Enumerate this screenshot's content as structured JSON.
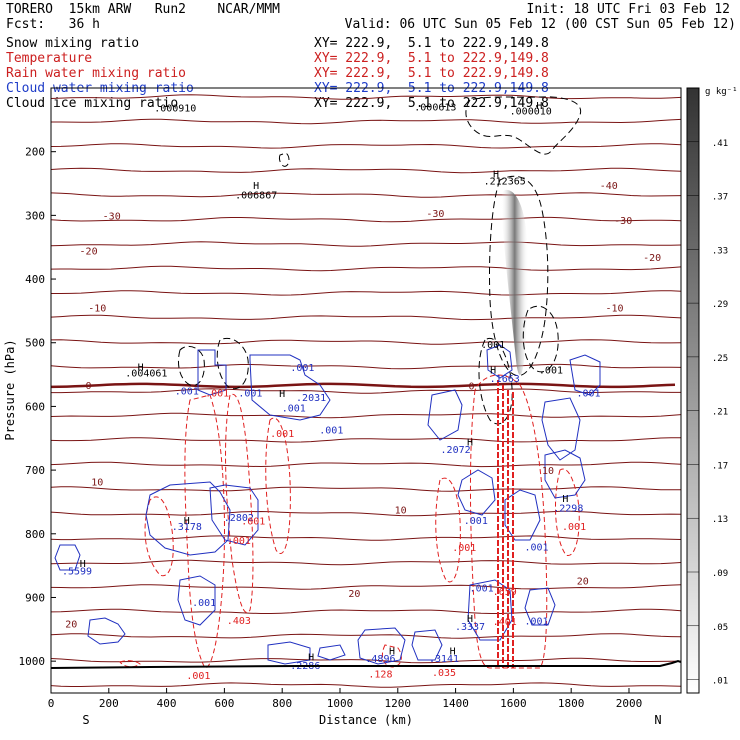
{
  "header": {
    "left_line1": "TORERO  15km ARW   Run2    NCAR/MMM",
    "left_line2": "Fcst:   36 h",
    "init": "Init: 18 UTC Fri 03 Feb 12",
    "valid": "Valid: 06 UTC Sun 05 Feb 12 (00 CST Sun 05 Feb 12)"
  },
  "fields": [
    {
      "name": "Snow mixing ratio",
      "xy": "XY= 222.9,  5.1 to 222.9,149.8",
      "color": "#000000"
    },
    {
      "name": "Temperature",
      "xy": "XY= 222.9,  5.1 to 222.9,149.8",
      "color": "#cc1f1f"
    },
    {
      "name": "Rain water mixing ratio",
      "xy": "XY= 222.9,  5.1 to 222.9,149.8",
      "color": "#cc1f1f"
    },
    {
      "name": "Cloud water mixing ratio",
      "xy": "XY= 222.9,  5.1 to 222.9,149.8",
      "color": "#1e3cc8"
    },
    {
      "name": "Cloud ice mixing ratio",
      "xy": "XY= 222.9,  5.1 to 222.9,149.8",
      "color": "#000000"
    }
  ],
  "colors": {
    "temp": "#7a1414",
    "rain": "#e02020",
    "cloud": "#2030c0",
    "ice": "#000000",
    "frame": "#000000"
  },
  "chart_data": {
    "type": "cross-section contour",
    "xlabel": "Distance (km)",
    "ylabel": "Pressure (hPa)",
    "x_ticks": [
      0,
      200,
      400,
      600,
      800,
      1000,
      1200,
      1400,
      1600,
      1800,
      2000
    ],
    "y_ticks": [
      200,
      300,
      400,
      500,
      600,
      700,
      800,
      900,
      1000
    ],
    "xlim": [
      0,
      2180
    ],
    "ylim": [
      1050,
      100
    ],
    "x_endpoints": {
      "left": "S",
      "right": "N"
    },
    "colorbar": {
      "unit": "g kg⁻¹",
      "ticks": [
        ".41",
        ".37",
        ".33",
        ".29",
        ".25",
        ".21",
        ".17",
        ".13",
        ".09",
        ".05",
        ".01"
      ],
      "values": [
        0.41,
        0.37,
        0.33,
        0.29,
        0.25,
        0.21,
        0.17,
        0.13,
        0.09,
        0.05,
        0.01
      ],
      "range": [
        0,
        0.45
      ]
    },
    "temperature_labels": [
      {
        "text": "-40",
        "x": 1930,
        "p": 252
      },
      {
        "text": "-30",
        "x": 210,
        "p": 300
      },
      {
        "text": "-30",
        "x": 1330,
        "p": 296
      },
      {
        "text": "-30",
        "x": 1980,
        "p": 307
      },
      {
        "text": "-20",
        "x": 130,
        "p": 355
      },
      {
        "text": "-20",
        "x": 2080,
        "p": 365
      },
      {
        "text": "-10",
        "x": 160,
        "p": 445
      },
      {
        "text": "-10",
        "x": 1950,
        "p": 445
      },
      {
        "text": "0",
        "x": 130,
        "p": 566
      },
      {
        "text": "0",
        "x": 1455,
        "p": 567
      },
      {
        "text": "10",
        "x": 160,
        "p": 718
      },
      {
        "text": "10",
        "x": 1210,
        "p": 762
      },
      {
        "text": "10",
        "x": 1720,
        "p": 700
      },
      {
        "text": "20",
        "x": 70,
        "p": 941
      },
      {
        "text": "20",
        "x": 1050,
        "p": 893
      },
      {
        "text": "20",
        "x": 1840,
        "p": 873
      }
    ],
    "maxima": [
      {
        "text": ".000910",
        "x": 430,
        "p": 131,
        "color": "ice"
      },
      {
        "text": ".000613",
        "x": 1330,
        "p": 129,
        "color": "ice"
      },
      {
        "text": ".000010",
        "x": 1660,
        "p": 135,
        "color": "ice"
      },
      {
        "text": ".006867",
        "x": 710,
        "p": 267,
        "color": "ice"
      },
      {
        "text": ".212365",
        "x": 1570,
        "p": 245,
        "color": "ice"
      },
      {
        "text": ".004061",
        "x": 330,
        "p": 547,
        "color": "ice"
      },
      {
        "text": ".001",
        "x": 470,
        "p": 575,
        "color": "cloud"
      },
      {
        "text": ".001",
        "x": 575,
        "p": 578,
        "color": "rain"
      },
      {
        "text": ".001",
        "x": 690,
        "p": 578,
        "color": "cloud"
      },
      {
        "text": ".001",
        "x": 870,
        "p": 538,
        "color": "cloud"
      },
      {
        "text": ".2031",
        "x": 900,
        "p": 585,
        "color": "cloud"
      },
      {
        "text": ".001",
        "x": 840,
        "p": 602,
        "color": "cloud"
      },
      {
        "text": ".001",
        "x": 970,
        "p": 636,
        "color": "cloud"
      },
      {
        "text": ".001",
        "x": 800,
        "p": 642,
        "color": "rain"
      },
      {
        "text": ".3178",
        "x": 470,
        "p": 788,
        "color": "cloud"
      },
      {
        "text": ".2802",
        "x": 650,
        "p": 774,
        "color": "cloud"
      },
      {
        "text": ".001",
        "x": 700,
        "p": 779,
        "color": "rain"
      },
      {
        "text": ".001",
        "x": 650,
        "p": 810,
        "color": "rain"
      },
      {
        "text": ".5599",
        "x": 90,
        "p": 858,
        "color": "cloud"
      },
      {
        "text": ".001",
        "x": 530,
        "p": 907,
        "color": "cloud"
      },
      {
        "text": ".403",
        "x": 650,
        "p": 935,
        "color": "rain"
      },
      {
        "text": ".001",
        "x": 510,
        "p": 1022,
        "color": "rain"
      },
      {
        "text": ".2286",
        "x": 880,
        "p": 1006,
        "color": "cloud"
      },
      {
        "text": ".4896",
        "x": 1140,
        "p": 995,
        "color": "cloud"
      },
      {
        "text": ".128",
        "x": 1140,
        "p": 1019,
        "color": "rain"
      },
      {
        "text": ".3141",
        "x": 1360,
        "p": 995,
        "color": "cloud"
      },
      {
        "text": ".035",
        "x": 1360,
        "p": 1017,
        "color": "rain"
      },
      {
        "text": ".001",
        "x": 1530,
        "p": 502,
        "color": "ice"
      },
      {
        "text": ".1663",
        "x": 1570,
        "p": 555,
        "color": "cloud"
      },
      {
        "text": ".001",
        "x": 1730,
        "p": 542,
        "color": "ice"
      },
      {
        "text": ".001",
        "x": 1860,
        "p": 578,
        "color": "cloud"
      },
      {
        "text": ".2072",
        "x": 1400,
        "p": 667,
        "color": "cloud"
      },
      {
        "text": ".2298",
        "x": 1790,
        "p": 759,
        "color": "cloud"
      },
      {
        "text": ".001",
        "x": 1810,
        "p": 788,
        "color": "rain"
      },
      {
        "text": ".001",
        "x": 1470,
        "p": 778,
        "color": "cloud"
      },
      {
        "text": ".001",
        "x": 1430,
        "p": 821,
        "color": "rain"
      },
      {
        "text": ".001",
        "x": 1680,
        "p": 820,
        "color": "cloud"
      },
      {
        "text": ".001",
        "x": 1490,
        "p": 884,
        "color": "cloud"
      },
      {
        "text": ".659",
        "x": 1570,
        "p": 890,
        "color": "rain"
      },
      {
        "text": ".3337",
        "x": 1450,
        "p": 945,
        "color": "cloud"
      },
      {
        "text": ".001",
        "x": 1680,
        "p": 936,
        "color": "cloud"
      },
      {
        "text": ".401",
        "x": 1570,
        "p": 937,
        "color": "rain"
      }
    ],
    "H_markers": [
      {
        "x": 710,
        "p": 252
      },
      {
        "x": 1540,
        "p": 234
      },
      {
        "x": 1690,
        "p": 127
      },
      {
        "x": 310,
        "p": 537
      },
      {
        "x": 800,
        "p": 579
      },
      {
        "x": 1530,
        "p": 542
      },
      {
        "x": 1450,
        "p": 655
      },
      {
        "x": 1780,
        "p": 744
      },
      {
        "x": 470,
        "p": 778
      },
      {
        "x": 110,
        "p": 846
      },
      {
        "x": 1450,
        "p": 932
      },
      {
        "x": 900,
        "p": 993
      },
      {
        "x": 1180,
        "p": 983
      },
      {
        "x": 1390,
        "p": 983
      }
    ]
  }
}
